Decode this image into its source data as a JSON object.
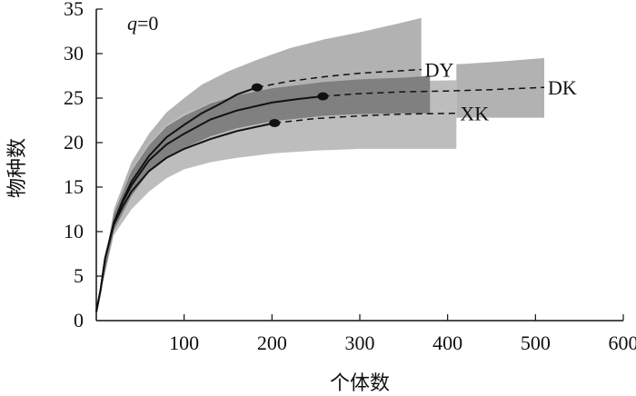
{
  "chart_data": {
    "type": "line",
    "title": "",
    "annotation": {
      "var": "q",
      "rest": "=0"
    },
    "xlabel": "个体数",
    "ylabel": "物种数",
    "xlim": [
      0,
      600
    ],
    "ylim": [
      0,
      35
    ],
    "xticks": [
      100,
      200,
      300,
      400,
      500,
      600
    ],
    "yticks": [
      0,
      5,
      10,
      15,
      20,
      25,
      30,
      35
    ],
    "grid": false,
    "series": [
      {
        "name": "DY",
        "color": "#111111",
        "observed": {
          "x": 183,
          "y": 26.2
        },
        "curve": [
          [
            0,
            1
          ],
          [
            5,
            3.5
          ],
          [
            10,
            7
          ],
          [
            20,
            11
          ],
          [
            30,
            13.5
          ],
          [
            40,
            15.6
          ],
          [
            60,
            18.5
          ],
          [
            80,
            20.6
          ],
          [
            100,
            22
          ],
          [
            120,
            23.3
          ],
          [
            140,
            24.3
          ],
          [
            160,
            25.4
          ],
          [
            183,
            26.2
          ],
          [
            220,
            26.9
          ],
          [
            260,
            27.4
          ],
          [
            300,
            27.8
          ],
          [
            370,
            28.2
          ]
        ],
        "band": {
          "fill": "#b2b2b2",
          "upper": [
            [
              0,
              1
            ],
            [
              20,
              12.5
            ],
            [
              40,
              17.8
            ],
            [
              60,
              21
            ],
            [
              80,
              23.4
            ],
            [
              100,
              25
            ],
            [
              120,
              26.5
            ],
            [
              150,
              28
            ],
            [
              183,
              29.3
            ],
            [
              220,
              30.6
            ],
            [
              260,
              31.6
            ],
            [
              300,
              32.4
            ],
            [
              340,
              33.3
            ],
            [
              370,
              34
            ]
          ],
          "lower": [
            [
              0,
              1
            ],
            [
              20,
              9.8
            ],
            [
              40,
              13.5
            ],
            [
              60,
              16
            ],
            [
              80,
              17.8
            ],
            [
              100,
              19
            ],
            [
              120,
              20
            ],
            [
              150,
              21
            ],
            [
              183,
              21.8
            ],
            [
              220,
              22
            ],
            [
              260,
              22.2
            ],
            [
              300,
              22.3
            ],
            [
              340,
              22.3
            ],
            [
              370,
              22.3
            ]
          ]
        }
      },
      {
        "name": "DK",
        "color": "#111111",
        "observed": {
          "x": 258,
          "y": 25.2
        },
        "curve": [
          [
            0,
            1
          ],
          [
            5,
            3.5
          ],
          [
            10,
            7
          ],
          [
            20,
            11
          ],
          [
            30,
            13.3
          ],
          [
            40,
            15.2
          ],
          [
            60,
            18
          ],
          [
            80,
            19.8
          ],
          [
            100,
            21
          ],
          [
            130,
            22.6
          ],
          [
            160,
            23.6
          ],
          [
            200,
            24.5
          ],
          [
            230,
            24.9
          ],
          [
            258,
            25.2
          ],
          [
            300,
            25.5
          ],
          [
            350,
            25.7
          ],
          [
            400,
            25.8
          ],
          [
            450,
            25.95
          ],
          [
            510,
            26.2
          ]
        ],
        "band": {
          "fill": "#808080",
          "upper": [
            [
              0,
              1
            ],
            [
              20,
              12
            ],
            [
              40,
              16.8
            ],
            [
              60,
              19.7
            ],
            [
              80,
              21.8
            ],
            [
              100,
              23
            ],
            [
              130,
              24.4
            ],
            [
              160,
              25.3
            ],
            [
              200,
              26.1
            ],
            [
              258,
              26.8
            ],
            [
              300,
              27.1
            ],
            [
              350,
              27.3
            ],
            [
              380,
              27.5
            ]
          ],
          "lower": [
            [
              0,
              1
            ],
            [
              20,
              10.1
            ],
            [
              40,
              14
            ],
            [
              60,
              16.7
            ],
            [
              80,
              18.4
            ],
            [
              100,
              19.4
            ],
            [
              130,
              20.7
            ],
            [
              160,
              21.6
            ],
            [
              200,
              22.4
            ],
            [
              258,
              23
            ],
            [
              300,
              23.2
            ],
            [
              350,
              23.3
            ],
            [
              380,
              23.3
            ]
          ]
        }
      },
      {
        "name": "XK",
        "color": "#111111",
        "observed": {
          "x": 203,
          "y": 22.2
        },
        "curve": [
          [
            0,
            1
          ],
          [
            5,
            3.5
          ],
          [
            10,
            7
          ],
          [
            20,
            10.8
          ],
          [
            30,
            12.8
          ],
          [
            40,
            14.5
          ],
          [
            60,
            16.8
          ],
          [
            80,
            18.3
          ],
          [
            100,
            19.3
          ],
          [
            130,
            20.4
          ],
          [
            160,
            21.3
          ],
          [
            203,
            22.2
          ],
          [
            250,
            22.7
          ],
          [
            300,
            23
          ],
          [
            350,
            23.2
          ],
          [
            410,
            23.3
          ]
        ],
        "band": {
          "fill": "#bdbdbd",
          "upper": [
            [
              0,
              1
            ],
            [
              20,
              12.3
            ],
            [
              40,
              17
            ],
            [
              60,
              20
            ],
            [
              80,
              22
            ],
            [
              100,
              23.3
            ],
            [
              130,
              24.5
            ],
            [
              160,
              25.3
            ],
            [
              203,
              26
            ],
            [
              250,
              26.4
            ],
            [
              300,
              26.7
            ],
            [
              350,
              26.9
            ],
            [
              410,
              27
            ]
          ],
          "lower": [
            [
              0,
              1
            ],
            [
              20,
              9.6
            ],
            [
              40,
              12.5
            ],
            [
              60,
              14.5
            ],
            [
              80,
              16
            ],
            [
              100,
              17
            ],
            [
              130,
              17.8
            ],
            [
              160,
              18.3
            ],
            [
              203,
              18.8
            ],
            [
              250,
              19.1
            ],
            [
              300,
              19.3
            ],
            [
              350,
              19.3
            ],
            [
              410,
              19.3
            ]
          ]
        }
      }
    ],
    "extra_band": {
      "label": "DK",
      "fill": "#b2b2b2",
      "upper": [
        [
          410,
          28.8
        ],
        [
          460,
          29.1
        ],
        [
          510,
          29.5
        ]
      ],
      "lower": [
        [
          410,
          22.8
        ],
        [
          460,
          22.8
        ],
        [
          510,
          22.8
        ]
      ]
    }
  }
}
